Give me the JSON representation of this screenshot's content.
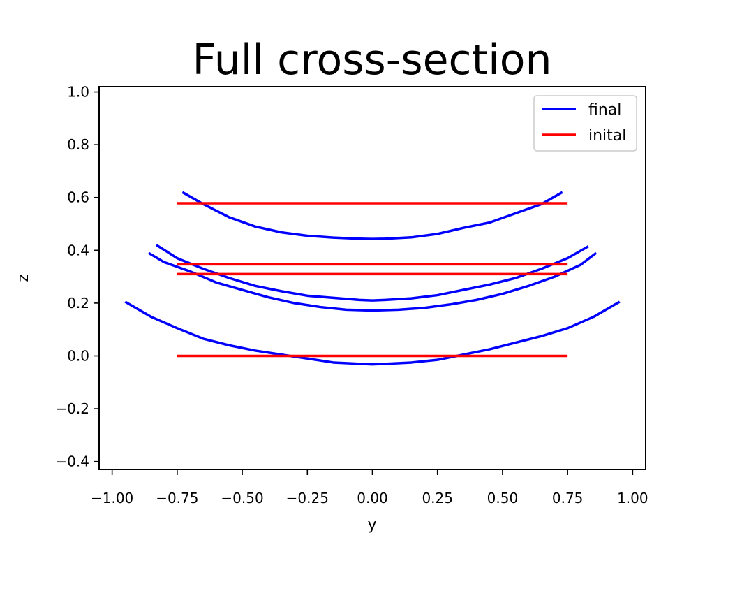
{
  "chart_data": {
    "type": "line",
    "title": "Full cross-section",
    "xlabel": "y",
    "ylabel": "z",
    "xlim": [
      -1.05,
      1.05
    ],
    "ylim": [
      -0.43,
      1.02
    ],
    "xticks": [
      -1.0,
      -0.75,
      -0.5,
      -0.25,
      0.0,
      0.25,
      0.5,
      0.75,
      1.0
    ],
    "xtick_labels": [
      "−1.00",
      "−0.75",
      "−0.50",
      "−0.25",
      "0.00",
      "0.25",
      "0.50",
      "0.75",
      "1.00"
    ],
    "yticks": [
      -0.4,
      -0.2,
      0.0,
      0.2,
      0.4,
      0.6,
      0.8,
      1.0
    ],
    "ytick_labels": [
      "−0.4",
      "−0.2",
      "0.0",
      "0.2",
      "0.4",
      "0.6",
      "0.8",
      "1.0"
    ],
    "grid": false,
    "legend_position": "top-right",
    "legend": [
      {
        "label": "final",
        "color": "#0000ff"
      },
      {
        "label": "inital",
        "color": "#ff0000"
      }
    ],
    "series": [
      {
        "group": "final",
        "color": "#0000ff",
        "x": [
          -0.73,
          -0.65,
          -0.55,
          -0.45,
          -0.35,
          -0.25,
          -0.15,
          -0.05,
          0.0,
          0.05,
          0.15,
          0.25,
          0.35,
          0.45,
          0.55,
          0.65,
          0.73
        ],
        "y": [
          0.62,
          0.575,
          0.525,
          0.49,
          0.468,
          0.455,
          0.448,
          0.444,
          0.443,
          0.444,
          0.449,
          0.462,
          0.485,
          0.505,
          0.54,
          0.575,
          0.62
        ]
      },
      {
        "group": "final",
        "color": "#0000ff",
        "x": [
          -0.83,
          -0.75,
          -0.65,
          -0.55,
          -0.45,
          -0.35,
          -0.25,
          -0.15,
          -0.05,
          0.0,
          0.05,
          0.15,
          0.25,
          0.35,
          0.45,
          0.55,
          0.65,
          0.75,
          0.83
        ],
        "y": [
          0.42,
          0.37,
          0.33,
          0.295,
          0.265,
          0.245,
          0.228,
          0.22,
          0.212,
          0.21,
          0.212,
          0.218,
          0.23,
          0.25,
          0.27,
          0.295,
          0.33,
          0.37,
          0.415
        ]
      },
      {
        "group": "final",
        "color": "#0000ff",
        "x": [
          -0.86,
          -0.8,
          -0.7,
          -0.6,
          -0.5,
          -0.4,
          -0.3,
          -0.2,
          -0.1,
          0.0,
          0.1,
          0.2,
          0.3,
          0.4,
          0.5,
          0.6,
          0.7,
          0.8,
          0.86
        ],
        "y": [
          0.39,
          0.355,
          0.32,
          0.278,
          0.25,
          0.222,
          0.2,
          0.185,
          0.175,
          0.172,
          0.175,
          0.182,
          0.195,
          0.212,
          0.235,
          0.265,
          0.3,
          0.345,
          0.39
        ]
      },
      {
        "group": "final",
        "color": "#0000ff",
        "x": [
          -0.95,
          -0.85,
          -0.75,
          -0.65,
          -0.55,
          -0.45,
          -0.35,
          -0.25,
          -0.15,
          -0.05,
          0.0,
          0.05,
          0.15,
          0.25,
          0.35,
          0.45,
          0.55,
          0.65,
          0.75,
          0.85,
          0.95
        ],
        "y": [
          0.205,
          0.148,
          0.105,
          0.065,
          0.04,
          0.02,
          0.005,
          -0.01,
          -0.025,
          -0.03,
          -0.032,
          -0.03,
          -0.025,
          -0.015,
          0.005,
          0.025,
          0.05,
          0.075,
          0.105,
          0.148,
          0.205
        ]
      },
      {
        "group": "inital",
        "color": "#ff0000",
        "x": [
          -0.75,
          0.75
        ],
        "y": [
          0.578,
          0.578
        ]
      },
      {
        "group": "inital",
        "color": "#ff0000",
        "x": [
          -0.75,
          0.75
        ],
        "y": [
          0.347,
          0.347
        ]
      },
      {
        "group": "inital",
        "color": "#ff0000",
        "x": [
          -0.75,
          0.75
        ],
        "y": [
          0.31,
          0.31
        ]
      },
      {
        "group": "inital",
        "color": "#ff0000",
        "x": [
          -0.75,
          0.75
        ],
        "y": [
          0.0,
          0.0
        ]
      }
    ]
  }
}
